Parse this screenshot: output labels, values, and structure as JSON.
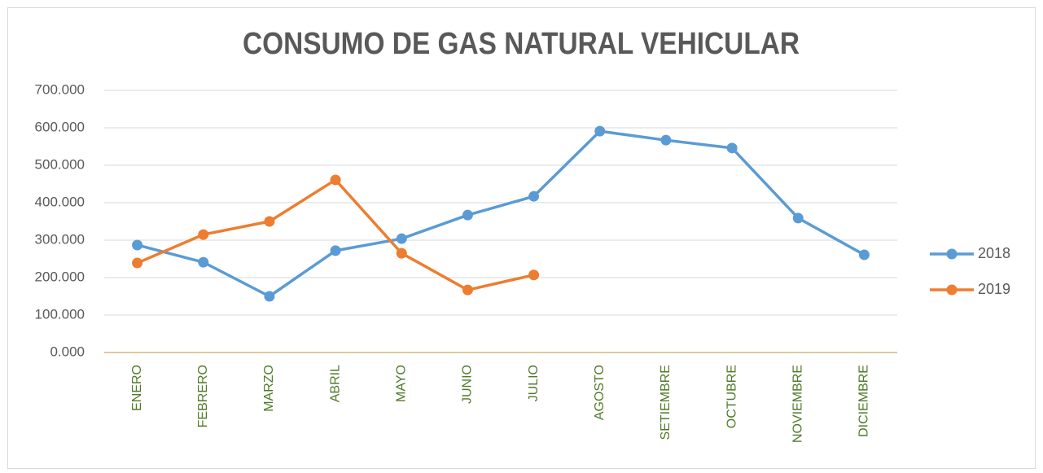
{
  "chart_data": {
    "type": "line",
    "title": "CONSUMO DE GAS NATURAL VEHICULAR",
    "categories": [
      "ENERO",
      "FEBRERO",
      "MARZO",
      "ABRIL",
      "MAYO",
      "JUNIO",
      "JULIO",
      "AGOSTO",
      "SETIEMBRE",
      "OCTUBRE",
      "NOVIEMBRE",
      "DICIEMBRE"
    ],
    "series": [
      {
        "name": "2018",
        "color": "#5b9bd5",
        "values": [
          287000,
          241000,
          150000,
          272000,
          304000,
          367000,
          417000,
          591000,
          567000,
          546000,
          359000,
          261000
        ]
      },
      {
        "name": "2019",
        "color": "#ed7d31",
        "values": [
          239000,
          315000,
          350000,
          461000,
          265000,
          167000,
          207000,
          null,
          null,
          null,
          null,
          null
        ]
      }
    ],
    "ylim": [
      0,
      700000
    ],
    "yticks": [
      {
        "value": 0,
        "label": "0.000"
      },
      {
        "value": 100000,
        "label": "100.000"
      },
      {
        "value": 200000,
        "label": "200.000"
      },
      {
        "value": 300000,
        "label": "300.000"
      },
      {
        "value": 400000,
        "label": "400.000"
      },
      {
        "value": 500000,
        "label": "500.000"
      },
      {
        "value": 600000,
        "label": "600.000"
      },
      {
        "value": 700000,
        "label": "700.000"
      }
    ],
    "grid": true,
    "legend": "right"
  }
}
